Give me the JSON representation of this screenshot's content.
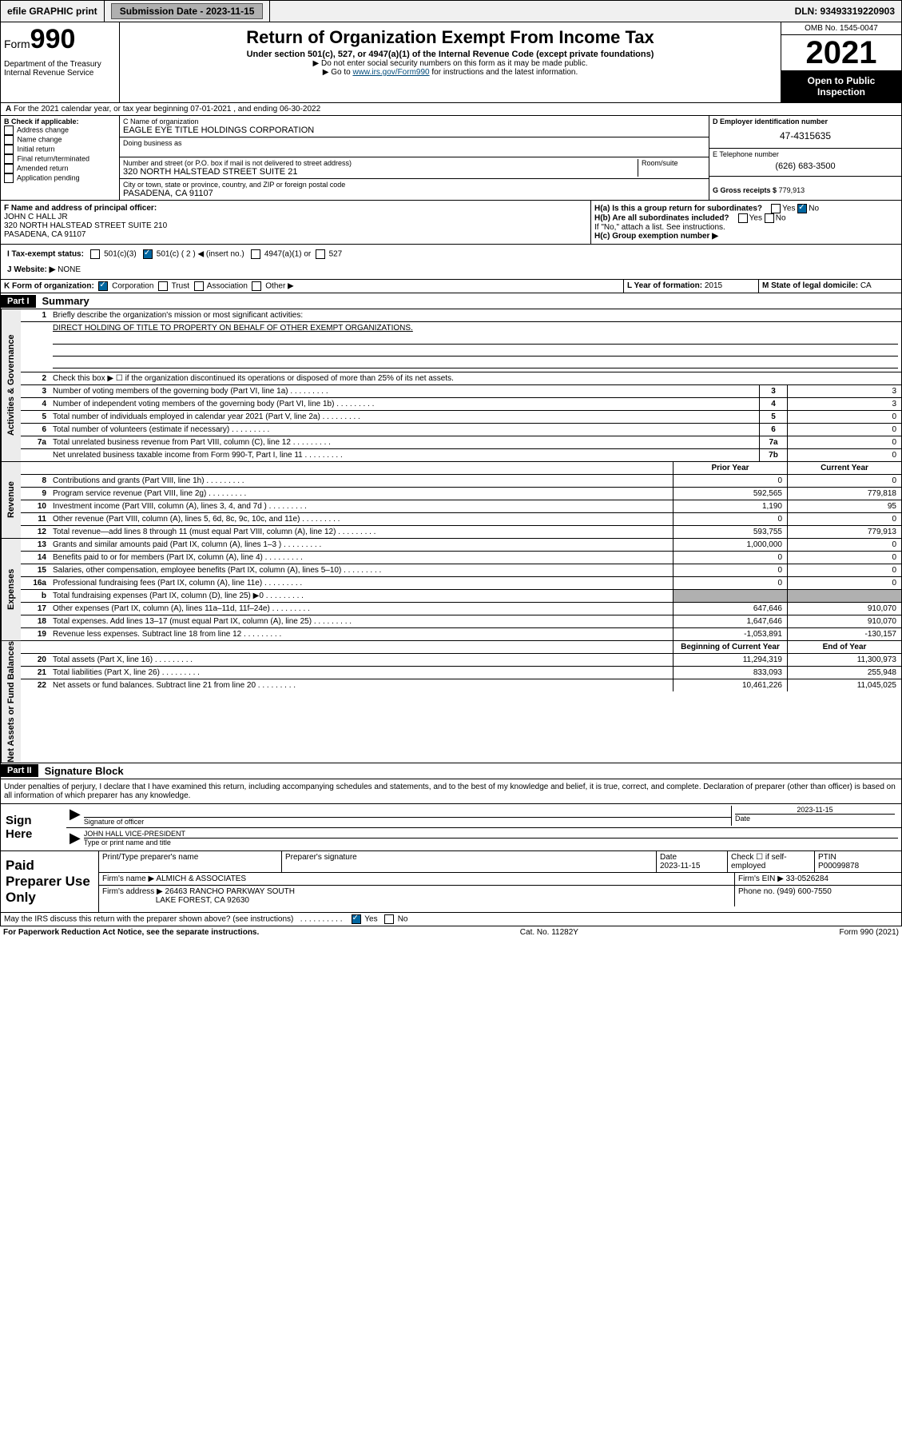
{
  "topbar": {
    "efile": "efile GRAPHIC print",
    "submission_label": "Submission Date - 2023-11-15",
    "dln": "DLN: 93493319220903"
  },
  "header": {
    "form_label": "Form",
    "form_no": "990",
    "dept": "Department of the Treasury\nInternal Revenue Service",
    "title": "Return of Organization Exempt From Income Tax",
    "sub": "Under section 501(c), 527, or 4947(a)(1) of the Internal Revenue Code (except private foundations)",
    "note1": "▶ Do not enter social security numbers on this form as it may be made public.",
    "note2_pre": "▶ Go to ",
    "note2_link": "www.irs.gov/Form990",
    "note2_post": " for instructions and the latest information.",
    "omb": "OMB No. 1545-0047",
    "year": "2021",
    "otp": "Open to Public Inspection"
  },
  "tax_year": "For the 2021 calendar year, or tax year beginning 07-01-2021 , and ending 06-30-2022",
  "section_b": {
    "label": "B Check if applicable:",
    "items": [
      "Address change",
      "Name change",
      "Initial return",
      "Final return/terminated",
      "Amended return",
      "Application pending"
    ]
  },
  "section_c": {
    "name_label": "C Name of organization",
    "name": "EAGLE EYE TITLE HOLDINGS CORPORATION",
    "dba_label": "Doing business as",
    "dba": "",
    "street_label": "Number and street (or P.O. box if mail is not delivered to street address)",
    "room_label": "Room/suite",
    "street": "320 NORTH HALSTEAD STREET SUITE 21",
    "city_label": "City or town, state or province, country, and ZIP or foreign postal code",
    "city": "PASADENA, CA  91107"
  },
  "section_d": {
    "ein_label": "D Employer identification number",
    "ein": "47-4315635",
    "phone_label": "E Telephone number",
    "phone": "(626) 683-3500",
    "gross_label": "G Gross receipts $",
    "gross": "779,913"
  },
  "officer": {
    "label": "F Name and address of principal officer:",
    "name": "JOHN C HALL JR",
    "addr1": "320 NORTH HALSTEAD STREET SUITE 210",
    "addr2": "PASADENA, CA  91107",
    "ha": "H(a) Is this a group return for subordinates?",
    "ha_yes": "Yes",
    "ha_no": "No",
    "hb": "H(b) Are all subordinates included?",
    "hb_yes": "Yes",
    "hb_no": "No",
    "hb_note": "If \"No,\" attach a list. See instructions.",
    "hc": "H(c) Group exemption number ▶"
  },
  "status": {
    "i_label": "I   Tax-exempt status:",
    "c3": "501(c)(3)",
    "c_paren": "501(c) ( 2 ) ◀ (insert no.)",
    "a1": "4947(a)(1) or",
    "s527": "527",
    "j_label": "J   Website: ▶",
    "website": "NONE"
  },
  "kline": {
    "k_label": "K Form of organization:",
    "corp": "Corporation",
    "trust": "Trust",
    "assoc": "Association",
    "other": "Other ▶",
    "l_label": "L Year of formation:",
    "l_val": "2015",
    "m_label": "M State of legal domicile:",
    "m_val": "CA"
  },
  "part1": {
    "hdr": "Part I",
    "title": "Summary",
    "q1": "Briefly describe the organization's mission or most significant activities:",
    "mission": "DIRECT HOLDING OF TITLE TO PROPERTY ON BEHALF OF OTHER EXEMPT ORGANIZATIONS.",
    "q2": "Check this box ▶ ☐ if the organization discontinued its operations or disposed of more than 25% of its net assets.",
    "lines_gov": [
      {
        "n": "3",
        "d": "Number of voting members of the governing body (Part VI, line 1a)",
        "box": "3",
        "v": "3"
      },
      {
        "n": "4",
        "d": "Number of independent voting members of the governing body (Part VI, line 1b)",
        "box": "4",
        "v": "3"
      },
      {
        "n": "5",
        "d": "Total number of individuals employed in calendar year 2021 (Part V, line 2a)",
        "box": "5",
        "v": "0"
      },
      {
        "n": "6",
        "d": "Total number of volunteers (estimate if necessary)",
        "box": "6",
        "v": "0"
      },
      {
        "n": "7a",
        "d": "Total unrelated business revenue from Part VIII, column (C), line 12",
        "box": "7a",
        "v": "0"
      },
      {
        "n": "",
        "d": "Net unrelated business taxable income from Form 990-T, Part I, line 11",
        "box": "7b",
        "v": "0"
      }
    ],
    "col_prior": "Prior Year",
    "col_current": "Current Year",
    "lines_rev": [
      {
        "n": "8",
        "d": "Contributions and grants (Part VIII, line 1h)",
        "p": "0",
        "c": "0"
      },
      {
        "n": "9",
        "d": "Program service revenue (Part VIII, line 2g)",
        "p": "592,565",
        "c": "779,818"
      },
      {
        "n": "10",
        "d": "Investment income (Part VIII, column (A), lines 3, 4, and 7d )",
        "p": "1,190",
        "c": "95"
      },
      {
        "n": "11",
        "d": "Other revenue (Part VIII, column (A), lines 5, 6d, 8c, 9c, 10c, and 11e)",
        "p": "0",
        "c": "0"
      },
      {
        "n": "12",
        "d": "Total revenue—add lines 8 through 11 (must equal Part VIII, column (A), line 12)",
        "p": "593,755",
        "c": "779,913"
      }
    ],
    "lines_exp": [
      {
        "n": "13",
        "d": "Grants and similar amounts paid (Part IX, column (A), lines 1–3 )",
        "p": "1,000,000",
        "c": "0"
      },
      {
        "n": "14",
        "d": "Benefits paid to or for members (Part IX, column (A), line 4)",
        "p": "0",
        "c": "0"
      },
      {
        "n": "15",
        "d": "Salaries, other compensation, employee benefits (Part IX, column (A), lines 5–10)",
        "p": "0",
        "c": "0"
      },
      {
        "n": "16a",
        "d": "Professional fundraising fees (Part IX, column (A), line 11e)",
        "p": "0",
        "c": "0"
      },
      {
        "n": "b",
        "d": "Total fundraising expenses (Part IX, column (D), line 25) ▶0",
        "p": "",
        "c": "",
        "grey": true
      },
      {
        "n": "17",
        "d": "Other expenses (Part IX, column (A), lines 11a–11d, 11f–24e)",
        "p": "647,646",
        "c": "910,070"
      },
      {
        "n": "18",
        "d": "Total expenses. Add lines 13–17 (must equal Part IX, column (A), line 25)",
        "p": "1,647,646",
        "c": "910,070"
      },
      {
        "n": "19",
        "d": "Revenue less expenses. Subtract line 18 from line 12",
        "p": "-1,053,891",
        "c": "-130,157"
      }
    ],
    "col_boy": "Beginning of Current Year",
    "col_eoy": "End of Year",
    "lines_net": [
      {
        "n": "20",
        "d": "Total assets (Part X, line 16)",
        "p": "11,294,319",
        "c": "11,300,973"
      },
      {
        "n": "21",
        "d": "Total liabilities (Part X, line 26)",
        "p": "833,093",
        "c": "255,948"
      },
      {
        "n": "22",
        "d": "Net assets or fund balances. Subtract line 21 from line 20",
        "p": "10,461,226",
        "c": "11,045,025"
      }
    ]
  },
  "part2": {
    "hdr": "Part II",
    "title": "Signature Block",
    "perjury": "Under penalties of perjury, I declare that I have examined this return, including accompanying schedules and statements, and to the best of my knowledge and belief, it is true, correct, and complete. Declaration of preparer (other than officer) is based on all information of which preparer has any knowledge."
  },
  "sign": {
    "left": "Sign Here",
    "sig_label": "Signature of officer",
    "date_label": "Date",
    "date": "2023-11-15",
    "name": "JOHN HALL VICE-PRESIDENT",
    "name_label": "Type or print name and title"
  },
  "prep": {
    "left": "Paid Preparer Use Only",
    "h1": "Print/Type preparer's name",
    "h2": "Preparer's signature",
    "h3": "Date",
    "h3v": "2023-11-15",
    "h4": "Check ☐ if self-employed",
    "h5": "PTIN",
    "h5v": "P00099878",
    "firm_label": "Firm's name    ▶",
    "firm": "ALMICH & ASSOCIATES",
    "ein_label": "Firm's EIN ▶",
    "ein": "33-0526284",
    "addr_label": "Firm's address ▶",
    "addr1": "26463 RANCHO PARKWAY SOUTH",
    "addr2": "LAKE FOREST, CA  92630",
    "phone_label": "Phone no.",
    "phone": "(949) 600-7550"
  },
  "discuss": {
    "q": "May the IRS discuss this return with the preparer shown above? (see instructions)",
    "yes": "Yes",
    "no": "No"
  },
  "footer": {
    "left": "For Paperwork Reduction Act Notice, see the separate instructions.",
    "mid": "Cat. No. 11282Y",
    "right": "Form 990 (2021)"
  },
  "vtabs": {
    "gov": "Activities & Governance",
    "rev": "Revenue",
    "exp": "Expenses",
    "net": "Net Assets or Fund Balances"
  }
}
